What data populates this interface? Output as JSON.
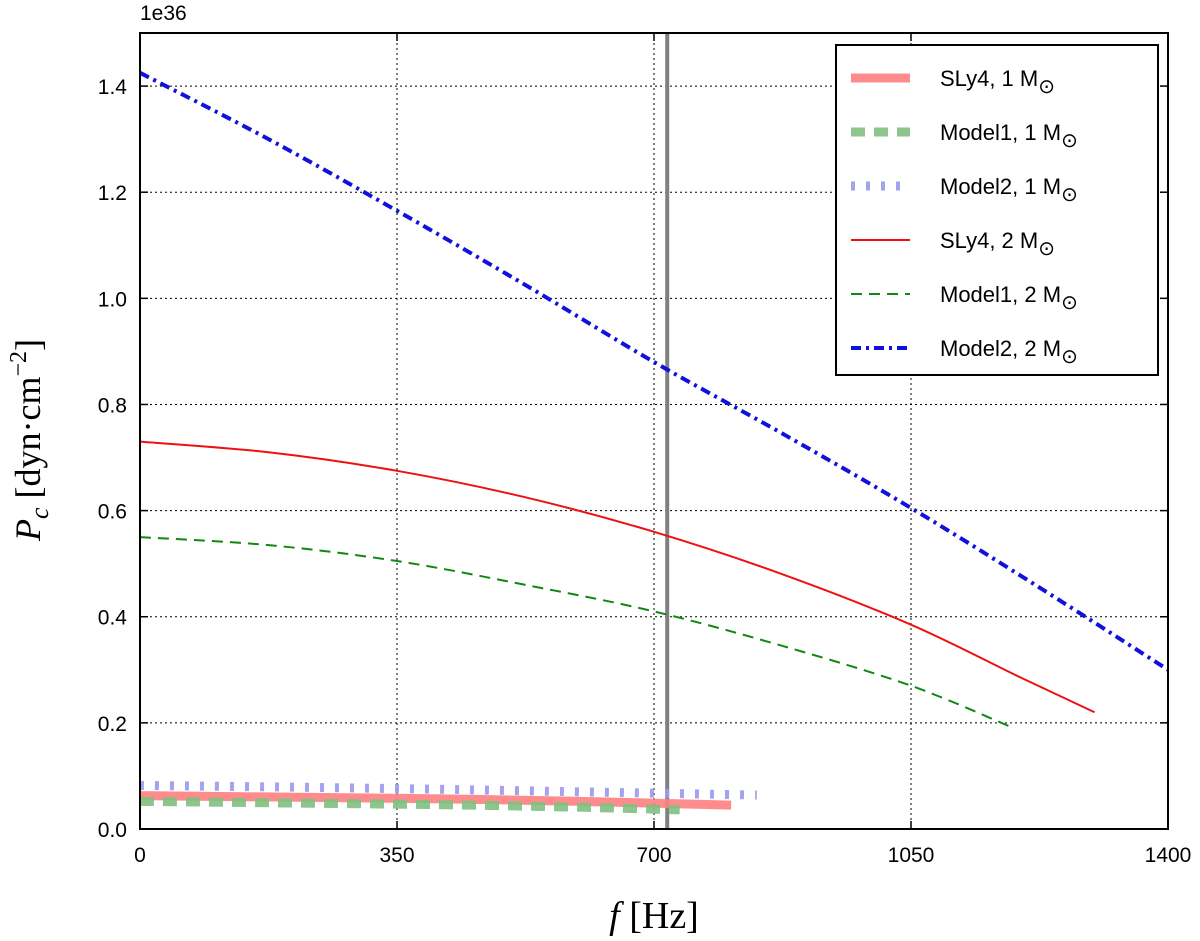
{
  "chart_data": {
    "type": "line",
    "title": "",
    "xlabel": "f [Hz]",
    "ylabel": "P_c [dyn·cm^-2]",
    "y_scale_label": "1e36",
    "xlim": [
      0,
      1400
    ],
    "ylim": [
      0,
      1.5
    ],
    "xticks": [
      0,
      350,
      700,
      1050,
      1400
    ],
    "yticks": [
      0.0,
      0.2,
      0.4,
      0.6,
      0.8,
      1.0,
      1.2,
      1.4
    ],
    "xtick_labels": [
      "0",
      "350",
      "700",
      "1050",
      "1400"
    ],
    "ytick_labels": [
      "0.0",
      "0.2",
      "0.4",
      "0.6",
      "0.8",
      "1.0",
      "1.2",
      "1.4"
    ],
    "grid": true,
    "legend_position": "top-right",
    "vertical_line": {
      "x": 718,
      "color": "#808080"
    },
    "series": [
      {
        "name": "SLy4, 1 M",
        "suffix": "⊙",
        "color": "#ff8080",
        "style": "thick-solid",
        "x": [
          0,
          200,
          400,
          600,
          805
        ],
        "y": [
          0.063,
          0.06,
          0.057,
          0.052,
          0.045
        ]
      },
      {
        "name": "Model1, 1 M",
        "suffix": "⊙",
        "color": "#80c080",
        "style": "thick-dashed",
        "x": [
          0,
          200,
          400,
          600,
          735
        ],
        "y": [
          0.052,
          0.049,
          0.046,
          0.041,
          0.036
        ]
      },
      {
        "name": "Model2, 1 M",
        "suffix": "⊙",
        "color": "#9999ee",
        "style": "thick-dotted",
        "x": [
          0,
          200,
          400,
          600,
          840
        ],
        "y": [
          0.082,
          0.079,
          0.075,
          0.07,
          0.064
        ]
      },
      {
        "name": "SLy4, 2 M",
        "suffix": "⊙",
        "color": "#ee1111",
        "style": "solid",
        "x": [
          0,
          175,
          350,
          525,
          700,
          875,
          1050,
          1200,
          1300
        ],
        "y": [
          0.73,
          0.71,
          0.675,
          0.625,
          0.56,
          0.48,
          0.385,
          0.285,
          0.22
        ]
      },
      {
        "name": "Model1, 2 M",
        "suffix": "⊙",
        "color": "#118811",
        "style": "dashed",
        "x": [
          0,
          175,
          350,
          525,
          700,
          875,
          1050,
          1190
        ],
        "y": [
          0.55,
          0.535,
          0.505,
          0.46,
          0.41,
          0.345,
          0.27,
          0.19
        ]
      },
      {
        "name": "Model2, 2 M",
        "suffix": "⊙",
        "color": "#1111dd",
        "style": "dash-dot",
        "x": [
          0,
          175,
          350,
          525,
          700,
          875,
          1050,
          1225,
          1400
        ],
        "y": [
          1.425,
          1.3,
          1.165,
          1.025,
          0.88,
          0.745,
          0.605,
          0.455,
          0.3
        ]
      }
    ]
  }
}
